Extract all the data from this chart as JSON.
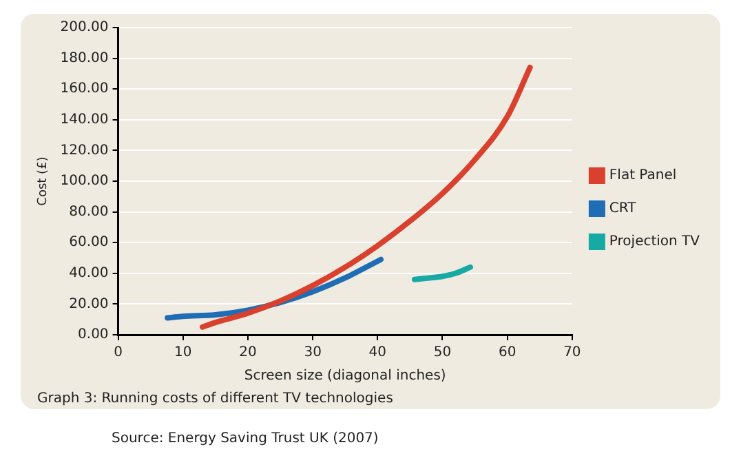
{
  "chart_data": {
    "type": "line",
    "xlabel": "Screen size (diagonal inches)",
    "ylabel": "Cost (£)",
    "annotations": [
      "Graph 3: Running costs of different TV technologies",
      "Source: Energy Saving Trust UK (2007)"
    ],
    "series": [
      {
        "name": "Flat Panel",
        "color": "#d9412e",
        "x": [
          13,
          15,
          20,
          25,
          30,
          35,
          40,
          45,
          50,
          55,
          60,
          63.5
        ],
        "values": [
          5,
          8,
          14,
          22,
          32,
          44,
          58,
          74,
          92,
          114,
          142,
          174
        ]
      },
      {
        "name": "CRT",
        "color": "#1f6db5",
        "x": [
          7.6,
          10,
          15,
          20,
          25,
          30,
          35,
          40.5
        ],
        "values": [
          11,
          12,
          13,
          16,
          21,
          28,
          37,
          49
        ]
      },
      {
        "name": "Projection TV",
        "color": "#17a9a4",
        "x": [
          45.7,
          48,
          50,
          52,
          54.3
        ],
        "values": [
          36,
          37,
          38,
          40,
          44
        ]
      }
    ],
    "xlim": [
      0,
      70
    ],
    "xticks": [
      0,
      10,
      20,
      30,
      40,
      50,
      60,
      70
    ],
    "ylim": [
      0,
      200
    ],
    "yticks": [
      {
        "value": 0,
        "label": "0.00"
      },
      {
        "value": 20,
        "label": "20.00"
      },
      {
        "value": 40,
        "label": "40.00"
      },
      {
        "value": 60,
        "label": "60.00"
      },
      {
        "value": 80,
        "label": "80.00"
      },
      {
        "value": 100,
        "label": "100.00"
      },
      {
        "value": 120,
        "label": "120.00"
      },
      {
        "value": 140,
        "label": "140.00"
      },
      {
        "value": 160,
        "label": "160.00"
      },
      {
        "value": 180,
        "label": "180.00"
      },
      {
        "value": 200,
        "label": "200.00"
      }
    ],
    "grid": "y",
    "legend": "right",
    "marker": "none",
    "line_style": "solid"
  }
}
